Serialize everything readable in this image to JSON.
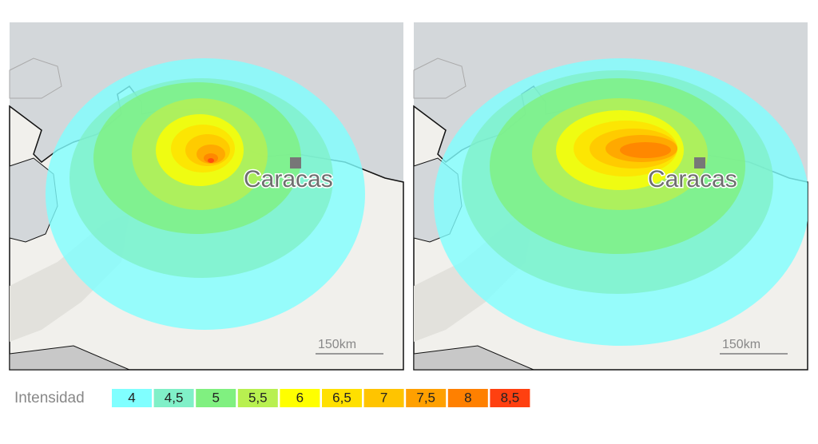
{
  "panels": [
    {
      "city": "Caracas",
      "scale": "150km"
    },
    {
      "city": "Caracas",
      "scale": "150km"
    }
  ],
  "legend": {
    "title": "Intensidad",
    "items": [
      {
        "label": "4",
        "color": "#80ffff"
      },
      {
        "label": "4,5",
        "color": "#80f0c8"
      },
      {
        "label": "5",
        "color": "#80f080"
      },
      {
        "label": "5,5",
        "color": "#b8f050"
      },
      {
        "label": "6",
        "color": "#ffff00"
      },
      {
        "label": "6,5",
        "color": "#ffe000"
      },
      {
        "label": "7",
        "color": "#ffc400"
      },
      {
        "label": "7,5",
        "color": "#ffa000"
      },
      {
        "label": "8",
        "color": "#ff8000"
      },
      {
        "label": "8,5",
        "color": "#ff4010"
      }
    ]
  }
}
